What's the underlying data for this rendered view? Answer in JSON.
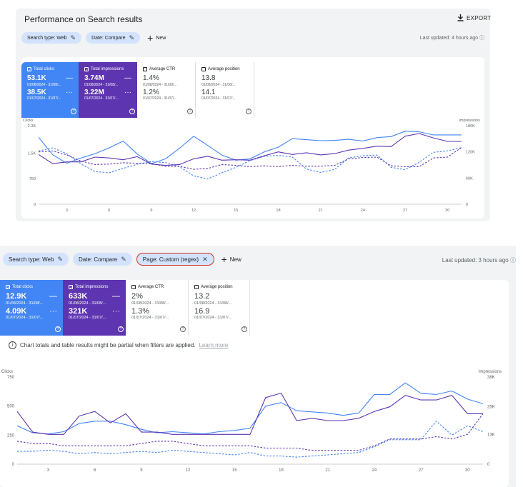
{
  "panel1": {
    "title": "Performance on Search results",
    "export_label": "EXPORT",
    "chips": [
      "Search type: Web",
      "Date: Compare"
    ],
    "new_label": "New",
    "updated": "Last updated: 4 hours ago",
    "metrics": {
      "clicks": {
        "label": "Total clicks",
        "cur": "53.1K",
        "cur_date": "01/08/2024 - 31/08/...",
        "prev": "38.5K",
        "prev_date": "01/07/2024 - 31/07/..."
      },
      "impr": {
        "label": "Total impressions",
        "cur": "3.74M",
        "cur_date": "01/08/2024 - 31/08/...",
        "prev": "3.22M",
        "prev_date": "01/07/2024 - 31/07/..."
      },
      "ctr": {
        "label": "Average CTR",
        "cur": "1.4%",
        "cur_date": "01/08/2024 - 31/08/...",
        "prev": "1.2%",
        "prev_date": "01/07/2024 - 31/07/..."
      },
      "pos": {
        "label": "Average position",
        "cur": "13.8",
        "cur_date": "01/08/2024 - 31/08/...",
        "prev": "14.1",
        "prev_date": "01/07/2024 - 31/07/..."
      }
    }
  },
  "panel2": {
    "chips": [
      "Search type: Web",
      "Date: Compare",
      "Page: Custom (regex)"
    ],
    "new_label": "New",
    "updated": "Last updated: 3 hours ago",
    "notice": "Chart totals and table results might be partial when filters are applied.",
    "learn_more": "Learn more",
    "metrics": {
      "clicks": {
        "label": "Total clicks",
        "cur": "12.9K",
        "cur_date": "01/08/2024 - 31/08/...",
        "prev": "4.09K",
        "prev_date": "01/07/2024 - 31/07/..."
      },
      "impr": {
        "label": "Total impressions",
        "cur": "633K",
        "cur_date": "01/08/2024 - 31/08/...",
        "prev": "321K",
        "prev_date": "01/07/2024 - 31/07/..."
      },
      "ctr": {
        "label": "Average CTR",
        "cur": "2%",
        "cur_date": "01/08/2024 - 31/08/...",
        "prev": "1.3%",
        "prev_date": "01/07/2024 - 31/07/..."
      },
      "pos": {
        "label": "Average position",
        "cur": "13.2",
        "cur_date": "01/08/2024 - 31/08/...",
        "prev": "16.9",
        "prev_date": "01/07/2024 - 31/07/..."
      }
    }
  },
  "colors": {
    "clicks": "#4285f4",
    "impressions": "#5e35b1",
    "regex_outline": "#d93025"
  },
  "chart_data": [
    {
      "type": "line",
      "ylabel": "Clicks",
      "y2label": "Impressions",
      "x": [
        1,
        2,
        3,
        4,
        5,
        6,
        7,
        8,
        9,
        10,
        11,
        12,
        13,
        14,
        15,
        16,
        17,
        18,
        19,
        20,
        21,
        22,
        23,
        24,
        25,
        26,
        27,
        28,
        29,
        30,
        31
      ],
      "xticks": [
        "3",
        "6",
        "9",
        "12",
        "15",
        "18",
        "21",
        "24",
        "27",
        "30"
      ],
      "xtick_values": [
        3,
        6,
        9,
        12,
        15,
        18,
        21,
        24,
        27,
        30
      ],
      "ylim": [
        0,
        2300
      ],
      "yticks": [
        "0",
        "750",
        "1.5K",
        "2.3K"
      ],
      "ytick_values": [
        0,
        750,
        1500,
        2300
      ],
      "y2lim": [
        0,
        180
      ],
      "y2ticks": [
        "0",
        "60K",
        "120K",
        "180K"
      ],
      "y2tick_values": [
        0,
        60,
        120,
        180
      ],
      "series": [
        {
          "axis": "left",
          "dash": false,
          "color": "#4285f4",
          "values": [
            1960,
            1450,
            1200,
            1350,
            1480,
            1650,
            1850,
            1470,
            1190,
            1330,
            1640,
            1990,
            1720,
            1440,
            1290,
            1330,
            1530,
            1670,
            1920,
            1890,
            1860,
            1870,
            1900,
            1850,
            1950,
            1980,
            2140,
            2120,
            2030,
            2030,
            2030
          ]
        },
        {
          "axis": "left",
          "dash": true,
          "color": "#4285f4",
          "values": [
            1560,
            1650,
            1480,
            1180,
            960,
            920,
            1050,
            1170,
            1250,
            1220,
            1100,
            830,
            740,
            920,
            1080,
            1280,
            1400,
            1430,
            1380,
            1030,
            930,
            1020,
            1360,
            1420,
            1440,
            1080,
            1010,
            1230,
            1520,
            1560,
            1660
          ]
        },
        {
          "axis": "right",
          "dash": false,
          "color": "#5e35b1",
          "values": [
            114,
            93,
            97,
            97,
            108,
            106,
            102,
            109,
            92,
            89,
            91,
            104,
            110,
            101,
            102,
            101,
            111,
            120,
            114,
            118,
            113,
            116,
            124,
            128,
            133,
            132,
            156,
            162,
            152,
            144,
            144
          ]
        },
        {
          "axis": "right",
          "dash": true,
          "color": "#5e35b1",
          "values": [
            120,
            122,
            113,
            99,
            91,
            92,
            95,
            94,
            93,
            87,
            87,
            80,
            82,
            91,
            89,
            86,
            88,
            86,
            89,
            87,
            87,
            89,
            104,
            107,
            108,
            88,
            86,
            86,
            106,
            108,
            130
          ]
        }
      ]
    },
    {
      "type": "line",
      "ylabel": "Clicks",
      "y2label": "Impressions",
      "x": [
        1,
        2,
        3,
        4,
        5,
        6,
        7,
        8,
        9,
        10,
        11,
        12,
        13,
        14,
        15,
        16,
        17,
        18,
        19,
        20,
        21,
        22,
        23,
        24,
        25,
        26,
        27,
        28,
        29,
        30,
        31
      ],
      "xticks": [
        "3",
        "6",
        "9",
        "12",
        "15",
        "18",
        "21",
        "24",
        "27",
        "30"
      ],
      "xtick_values": [
        3,
        6,
        9,
        12,
        15,
        18,
        21,
        24,
        27,
        30
      ],
      "ylim": [
        0,
        750
      ],
      "yticks": [
        "0",
        "250",
        "500",
        "750"
      ],
      "ytick_values": [
        0,
        250,
        500,
        750
      ],
      "y2lim": [
        0,
        38
      ],
      "y2ticks": [
        "0",
        "13K",
        "25K",
        "38K"
      ],
      "y2tick_values": [
        0,
        13,
        25,
        38
      ],
      "series": [
        {
          "axis": "left",
          "dash": false,
          "color": "#4285f4",
          "values": [
            330,
            270,
            260,
            280,
            350,
            370,
            370,
            340,
            300,
            270,
            280,
            270,
            260,
            280,
            290,
            310,
            500,
            530,
            460,
            450,
            440,
            420,
            440,
            600,
            600,
            700,
            610,
            600,
            630,
            560,
            520
          ]
        },
        {
          "axis": "left",
          "dash": true,
          "color": "#4285f4",
          "values": [
            110,
            110,
            120,
            110,
            90,
            100,
            90,
            100,
            110,
            100,
            120,
            110,
            100,
            90,
            80,
            100,
            70,
            70,
            60,
            70,
            80,
            90,
            100,
            150,
            210,
            210,
            210,
            370,
            250,
            330,
            280
          ]
        },
        {
          "axis": "right",
          "dash": false,
          "color": "#5e35b1",
          "values": [
            23,
            14,
            13,
            13,
            21,
            23,
            18,
            22,
            14,
            14,
            13,
            13,
            13,
            13,
            13,
            13,
            29,
            31,
            19,
            20,
            19,
            19,
            20,
            23,
            25,
            30,
            28,
            28,
            30,
            22,
            22
          ]
        },
        {
          "axis": "right",
          "dash": true,
          "color": "#5e35b1",
          "values": [
            10,
            9,
            9,
            8,
            8,
            8,
            8,
            8,
            9,
            10,
            10,
            9,
            8,
            8,
            8,
            8,
            7,
            7,
            7,
            6,
            6,
            6,
            6,
            8,
            11,
            11,
            11,
            12,
            11,
            13,
            22
          ]
        }
      ]
    }
  ]
}
